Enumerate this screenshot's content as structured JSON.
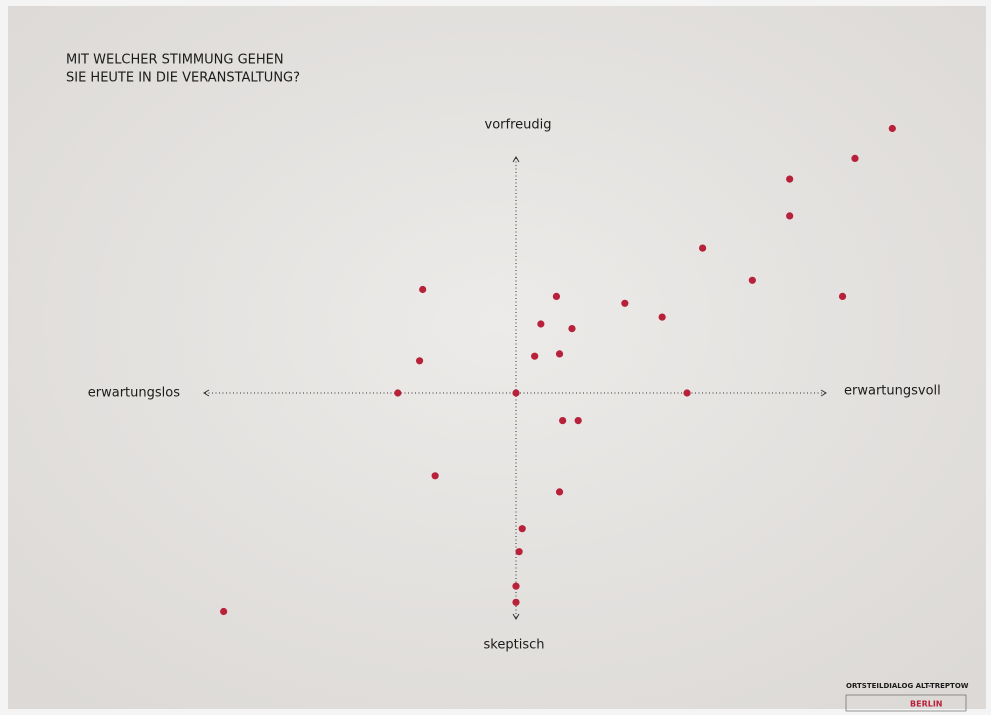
{
  "chart_data": {
    "type": "scatter",
    "title": [
      "MIT WELCHER STIMMUNG GEHEN",
      "SIE HEUTE IN DIE VERANSTALTUNG?"
    ],
    "y_top_label": "vorfreudig",
    "y_bottom_label": "skeptisch",
    "x_left_label": "erwartungslos",
    "x_right_label": "erwartungsvoll",
    "footer": "ORTSTEILDIALOG ALT-TREPTOW",
    "footer_logo": "BERLIN",
    "color": "#b8213a",
    "xlim": [
      -15,
      15
    ],
    "ylim": [
      -13,
      13
    ],
    "x": [
      12.1,
      10.9,
      8.8,
      8.8,
      6.0,
      7.6,
      10.5,
      1.3,
      3.5,
      4.7,
      0.8,
      1.8,
      0.6,
      1.4,
      -3.0,
      -3.1,
      -3.8,
      0.0,
      5.5,
      1.5,
      2.0,
      -2.6,
      1.4,
      0.2,
      0.1,
      0.0,
      0.0,
      -9.4
    ],
    "y": [
      11.5,
      10.2,
      9.3,
      7.7,
      6.3,
      4.9,
      4.2,
      4.2,
      3.9,
      3.3,
      3.0,
      2.8,
      1.6,
      1.7,
      4.5,
      1.4,
      0.0,
      0.0,
      0.0,
      -1.2,
      -1.2,
      -3.6,
      -4.3,
      -5.9,
      -6.9,
      -8.4,
      -9.1,
      -9.5
    ]
  }
}
